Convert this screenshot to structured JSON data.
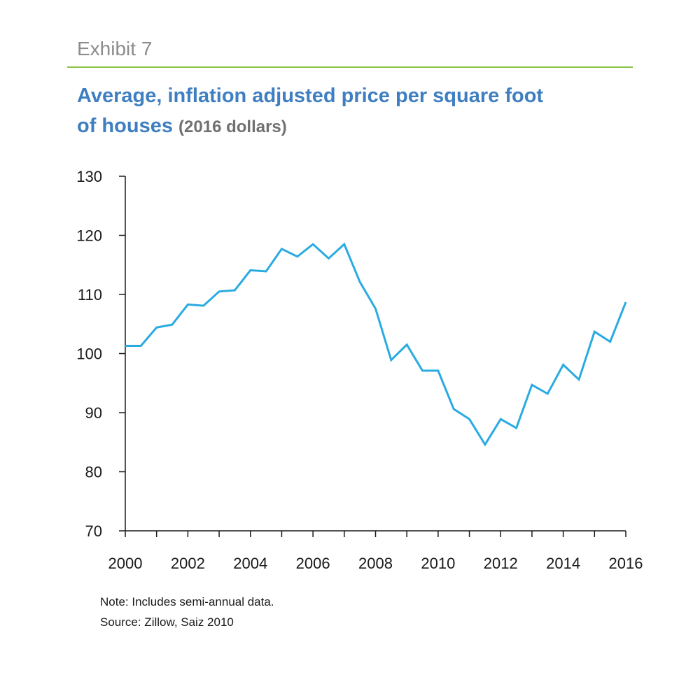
{
  "header": {
    "exhibit_label": "Exhibit 7",
    "title_line1": "Average, inflation adjusted price per square foot",
    "title_line2": "of houses",
    "title_unit": "(2016 dollars)"
  },
  "notes": {
    "note": "Note: Includes semi-annual data.",
    "source": "Source: Zillow, Saiz 2010"
  },
  "colors": {
    "line": "#29abe2",
    "title": "#3f7fc1",
    "rule": "#8bc34a",
    "axis": "#1a1a1a"
  },
  "chart_data": {
    "type": "line",
    "title": "Average, inflation adjusted price per square foot of houses (2016 dollars)",
    "xlabel": "",
    "ylabel": "",
    "ylim": [
      70,
      130
    ],
    "xlim": [
      2000,
      2016
    ],
    "yticks": [
      70,
      80,
      90,
      100,
      110,
      120,
      130
    ],
    "xtick_labels": [
      "2000",
      "2002",
      "2004",
      "2006",
      "2008",
      "2010",
      "2012",
      "2014",
      "2016"
    ],
    "xticks": [
      2000,
      2002,
      2004,
      2006,
      2008,
      2010,
      2012,
      2014,
      2016
    ],
    "minor_xticks": [
      2001,
      2003,
      2005,
      2007,
      2009,
      2011,
      2013,
      2015
    ],
    "grid": false,
    "series": [
      {
        "x": [
          2000,
          2000.5,
          2001,
          2001.5,
          2002,
          2002.5,
          2003,
          2003.5,
          2004,
          2004.5,
          2005,
          2005.5,
          2006,
          2006.5,
          2007,
          2007.5,
          2008,
          2008.5,
          2009,
          2009.5,
          2010,
          2010.5,
          2011,
          2011.5,
          2012,
          2012.5,
          2013,
          2013.5,
          2014,
          2014.5,
          2015,
          2015.5,
          2016
        ],
        "values": [
          101.3,
          101.3,
          104.4,
          104.9,
          108.3,
          108.1,
          110.5,
          110.7,
          114.1,
          113.9,
          117.7,
          116.4,
          118.5,
          116.1,
          118.5,
          112.1,
          107.6,
          98.9,
          101.5,
          97.1,
          97.1,
          90.6,
          88.9,
          84.6,
          88.9,
          87.4,
          94.7,
          93.2,
          98.1,
          95.6,
          103.7,
          102.0,
          108.7
        ]
      }
    ]
  }
}
